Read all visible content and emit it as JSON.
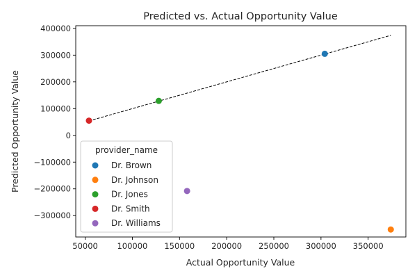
{
  "chart_data": {
    "type": "scatter",
    "title": "Predicted vs. Actual Opportunity Value",
    "xlabel": "Actual Opportunity Value",
    "ylabel": "Predicted Opportunity Value",
    "xlim": [
      40000,
      390000
    ],
    "ylim": [
      -380000,
      410000
    ],
    "xticks": [
      50000,
      100000,
      150000,
      200000,
      250000,
      300000,
      350000
    ],
    "yticks": [
      -300000,
      -200000,
      -100000,
      0,
      100000,
      200000,
      300000,
      400000
    ],
    "xtick_labels": [
      "50000",
      "100000",
      "150000",
      "200000",
      "250000",
      "300000",
      "350000"
    ],
    "ytick_labels": [
      "−300000",
      "−200000",
      "−100000",
      "0",
      "100000",
      "200000",
      "300000",
      "400000"
    ],
    "grid": false,
    "legend": {
      "title": "provider_name",
      "placement": "lower-left"
    },
    "series": [
      {
        "name": "Dr. Brown",
        "color": "#1f77b4",
        "points": [
          {
            "x": 304000,
            "y": 305000
          }
        ]
      },
      {
        "name": "Dr. Johnson",
        "color": "#ff7f0e",
        "points": [
          {
            "x": 374000,
            "y": -352000
          }
        ]
      },
      {
        "name": "Dr. Jones",
        "color": "#2ca02c",
        "points": [
          {
            "x": 128000,
            "y": 129000
          }
        ]
      },
      {
        "name": "Dr. Smith",
        "color": "#d62728",
        "points": [
          {
            "x": 54000,
            "y": 55000
          }
        ]
      },
      {
        "name": "Dr. Williams",
        "color": "#9467bd",
        "points": [
          {
            "x": 158000,
            "y": -208000
          }
        ]
      }
    ],
    "reference_line": {
      "style": "dashed",
      "color": "#000000",
      "from": {
        "x": 54000,
        "y": 54000
      },
      "to": {
        "x": 374000,
        "y": 374000
      }
    }
  }
}
